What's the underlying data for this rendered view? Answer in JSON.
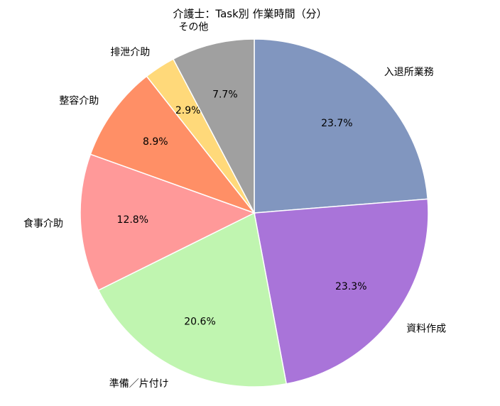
{
  "chart_data": {
    "type": "pie",
    "title": "介護士：Task別 作業時間（分）",
    "categories": [
      "入退所業務",
      "資料作成",
      "準備／片付け",
      "食事介助",
      "整容介助",
      "排泄介助",
      "その他"
    ],
    "values": [
      23.7,
      23.3,
      20.6,
      12.8,
      8.9,
      2.9,
      7.7
    ],
    "value_labels": [
      "23.7%",
      "23.3%",
      "20.6%",
      "12.8%",
      "8.9%",
      "2.9%",
      "7.7%"
    ],
    "colors": [
      "#8196bf",
      "#a974d9",
      "#c0f5b0",
      "#ff9999",
      "#ff8f66",
      "#ffd97a",
      "#a0a0a0"
    ]
  }
}
